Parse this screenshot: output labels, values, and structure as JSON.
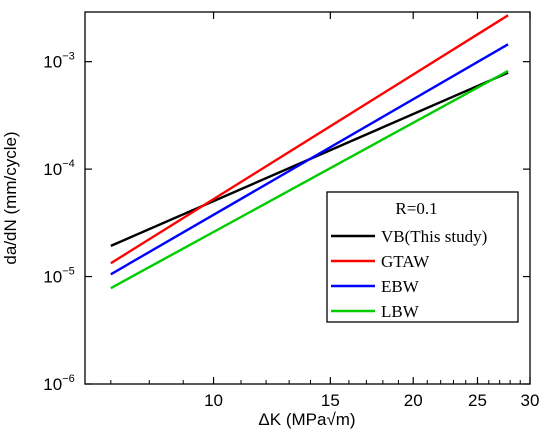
{
  "chart_data": {
    "type": "line",
    "title": "",
    "xlabel": "ΔK (MPa√m)",
    "ylabel": "da/dN (mm/cycle)",
    "x_scale": "log",
    "y_scale": "log",
    "xlim": [
      6.4,
      30
    ],
    "ylim": [
      1e-06,
      0.0029
    ],
    "x_ticks": [
      {
        "value": 10,
        "label": "10"
      },
      {
        "value": 15,
        "label": "15"
      },
      {
        "value": 20,
        "label": "20"
      },
      {
        "value": 25,
        "label": "25"
      },
      {
        "value": 30,
        "label": "30"
      }
    ],
    "y_ticks": [
      {
        "value": 1e-06,
        "base": "10",
        "exp": "−6"
      },
      {
        "value": 1e-05,
        "base": "10",
        "exp": "−5"
      },
      {
        "value": 0.0001,
        "base": "10",
        "exp": "−4"
      },
      {
        "value": 0.001,
        "base": "10",
        "exp": "−3"
      }
    ],
    "grid": false,
    "legend": {
      "title": "R=0.1",
      "position": "bottom-right"
    },
    "series": [
      {
        "name": "VB(This study)",
        "color": "#000000",
        "x": [
          7.0,
          27.8
        ],
        "y": [
          1.93e-05,
          0.00079
        ]
      },
      {
        "name": "GTAW",
        "color": "#ff0000",
        "x": [
          7.0,
          27.8
        ],
        "y": [
          1.33e-05,
          0.0027
        ]
      },
      {
        "name": "EBW",
        "color": "#0000ff",
        "x": [
          7.0,
          27.8
        ],
        "y": [
          1.05e-05,
          0.00145
        ]
      },
      {
        "name": "LBW",
        "color": "#00cc00",
        "x": [
          7.0,
          27.8
        ],
        "y": [
          7.8e-06,
          0.00082
        ]
      }
    ]
  }
}
